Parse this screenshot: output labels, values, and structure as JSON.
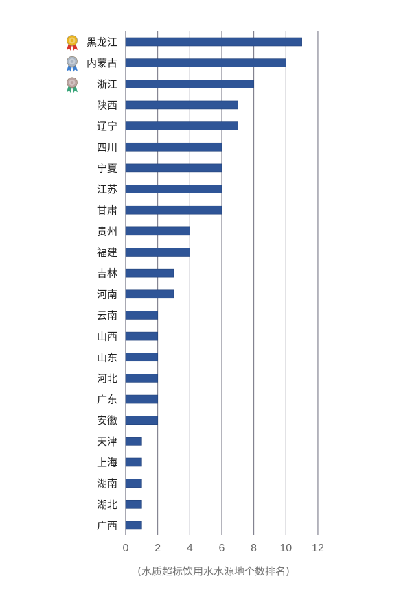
{
  "chart_data": {
    "type": "bar",
    "orientation": "horizontal",
    "categories": [
      "黑龙江",
      "内蒙古",
      "浙江",
      "陕西",
      "辽宁",
      "四川",
      "宁夏",
      "江苏",
      "甘肃",
      "贵州",
      "福建",
      "吉林",
      "河南",
      "云南",
      "山西",
      "山东",
      "河北",
      "广东",
      "安徽",
      "天津",
      "上海",
      "湖南",
      "湖北",
      "广西"
    ],
    "values": [
      11,
      10,
      8,
      7,
      7,
      6,
      6,
      6,
      6,
      4,
      4,
      3,
      3,
      2,
      2,
      2,
      2,
      2,
      2,
      1,
      1,
      1,
      1,
      1
    ],
    "xlim": [
      0,
      12
    ],
    "x_ticks": [
      "0",
      "2",
      "4",
      "6",
      "8",
      "10",
      "12"
    ],
    "xlabel": "(水质超标饮用水水源地个数排名)",
    "grid": true,
    "medals": [
      {
        "category": "黑龙江",
        "icon": "gold-medal-icon",
        "color": "#e8b422"
      },
      {
        "category": "内蒙古",
        "icon": "silver-medal-icon",
        "color": "#a9b4c2"
      },
      {
        "category": "浙江",
        "icon": "bronze-medal-icon",
        "color": "#b9a2a0"
      }
    ],
    "colors": {
      "bar": "#2f5597",
      "bar_edge": "#1f3f78",
      "gridline": "#6f6f7f",
      "medal_ribbon_red": "#d9342b",
      "medal_ribbon_blue": "#3d7fd0",
      "medal_ribbon_green": "#3aa57a"
    }
  }
}
